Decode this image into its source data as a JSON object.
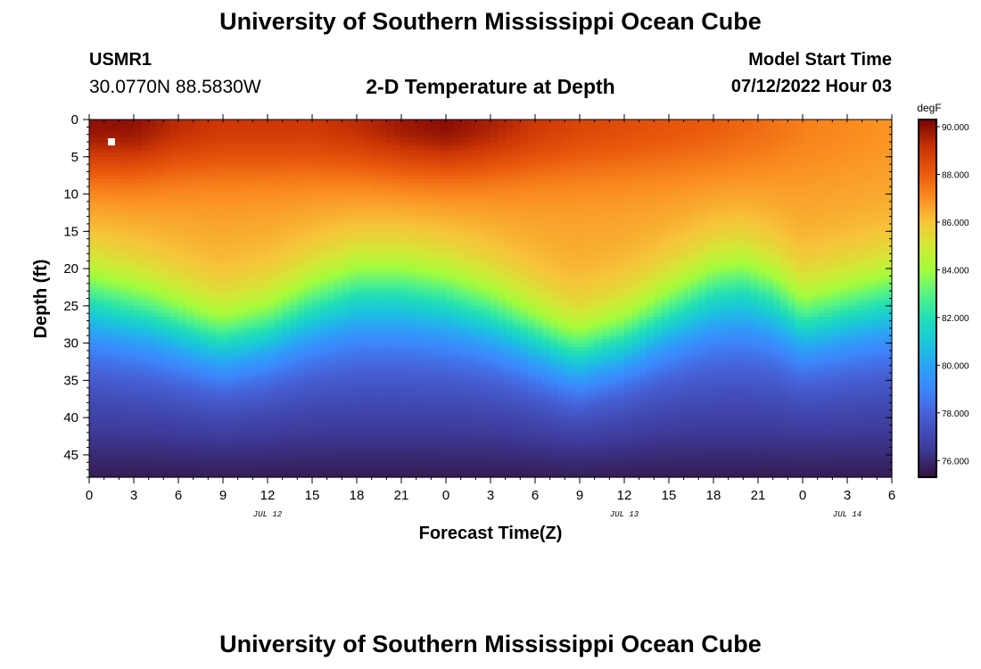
{
  "header": {
    "title": "University of Southern Mississippi Ocean Cube",
    "station_id": "USMR1",
    "station_coords": "30.0770N  88.5830W",
    "subtitle": "2-D Temperature at Depth",
    "start_label": "Model Start Time",
    "start_value": "07/12/2022 Hour 03"
  },
  "footer": {
    "title": "University of Southern Mississippi Ocean Cube"
  },
  "chart_data": {
    "type": "heatmap",
    "title": "2-D Temperature at Depth",
    "xlabel": "Forecast Time(Z)",
    "ylabel": "Depth (ft)",
    "x_hours_range": [
      0,
      54
    ],
    "x_tick_labels": [
      "0",
      "3",
      "6",
      "9",
      "12",
      "15",
      "18",
      "21",
      "0",
      "3",
      "6",
      "9",
      "12",
      "15",
      "18",
      "21",
      "0",
      "3",
      "6"
    ],
    "date_labels": [
      {
        "hour": 12,
        "text": "JUL 12"
      },
      {
        "hour": 36,
        "text": "JUL 13"
      },
      {
        "hour": 51,
        "text": "JUL 14"
      }
    ],
    "ylim": [
      0,
      48
    ],
    "y_ticks": [
      0,
      5,
      10,
      15,
      20,
      25,
      30,
      35,
      40,
      45
    ],
    "colorbar": {
      "unit": "degF",
      "range": [
        75.3,
        90.3
      ],
      "ticks": [
        76.0,
        78.0,
        80.0,
        82.0,
        84.0,
        86.0,
        88.0,
        90.0
      ],
      "tick_labels": [
        "76.000",
        "78.000",
        "80.000",
        "82.000",
        "84.000",
        "86.000",
        "88.000",
        "90.000"
      ],
      "stops": [
        {
          "value": 75.3,
          "color": "#30123b"
        },
        {
          "value": 76.5,
          "color": "#3e3a99"
        },
        {
          "value": 78.0,
          "color": "#4662d8"
        },
        {
          "value": 79.0,
          "color": "#3d86fc"
        },
        {
          "value": 80.0,
          "color": "#2aa5f5"
        },
        {
          "value": 81.0,
          "color": "#1ac7d9"
        },
        {
          "value": 82.0,
          "color": "#22dfb5"
        },
        {
          "value": 83.0,
          "color": "#58f482"
        },
        {
          "value": 84.0,
          "color": "#a2fc3c"
        },
        {
          "value": 85.0,
          "color": "#d1e935"
        },
        {
          "value": 86.0,
          "color": "#f6c53a"
        },
        {
          "value": 87.0,
          "color": "#fb8e21"
        },
        {
          "value": 88.0,
          "color": "#ea5b0d"
        },
        {
          "value": 89.0,
          "color": "#ce3805"
        },
        {
          "value": 90.3,
          "color": "#7a0403"
        }
      ]
    },
    "thermocline_depth_ft": {
      "hours": [
        0,
        4,
        8,
        9,
        12,
        15,
        18,
        21,
        24,
        27,
        30,
        32,
        33,
        36,
        39,
        42,
        44,
        46,
        48,
        51,
        54
      ],
      "values": [
        23.5,
        25.5,
        28.5,
        29.0,
        27.5,
        24.5,
        22.5,
        22.5,
        23.5,
        25.5,
        28.5,
        30.5,
        31.0,
        29.0,
        25.5,
        22.5,
        22.0,
        23.5,
        26.5,
        25.0,
        23.5
      ]
    },
    "surface_core": {
      "hours": [
        0,
        3,
        6,
        9,
        12,
        15,
        18,
        21,
        24,
        27,
        30,
        33,
        36,
        39,
        42,
        45,
        48,
        51,
        54
      ],
      "values": [
        90.0,
        90.0,
        89.3,
        89.0,
        89.0,
        89.0,
        89.3,
        89.8,
        90.1,
        89.6,
        89.0,
        88.6,
        88.4,
        88.2,
        88.0,
        87.7,
        87.3,
        87.1,
        86.9
      ]
    },
    "marker": {
      "hour": 1.5,
      "depth_ft": 3
    }
  }
}
